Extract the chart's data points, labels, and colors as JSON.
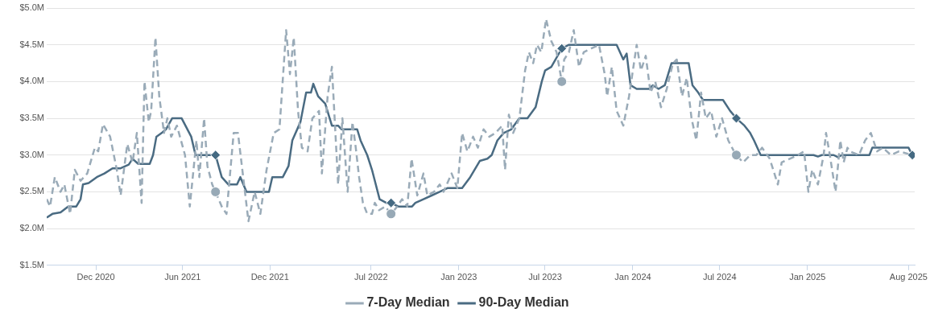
{
  "chart_data": {
    "type": "line",
    "xlim": [
      "2020-08-20",
      "2025-08-14"
    ],
    "xticks": [
      {
        "value": "2020-12-01",
        "label": "Dec 2020"
      },
      {
        "value": "2021-06-01",
        "label": "Jun 2021"
      },
      {
        "value": "2021-12-01",
        "label": "Dec 2021"
      },
      {
        "value": "2022-07-01",
        "label": "Jul 2022"
      },
      {
        "value": "2023-01-01",
        "label": "Jan 2023"
      },
      {
        "value": "2023-07-01",
        "label": "Jul 2023"
      },
      {
        "value": "2024-01-01",
        "label": "Jan 2024"
      },
      {
        "value": "2024-07-01",
        "label": "Jul 2024"
      },
      {
        "value": "2025-01-01",
        "label": "Jan 2025"
      },
      {
        "value": "2025-08-01",
        "label": "Aug 2025"
      }
    ],
    "ylim": [
      1.5,
      5.0
    ],
    "yticks": [
      {
        "value": 1.5,
        "label": "$1.5M"
      },
      {
        "value": 2.0,
        "label": "$2.0M"
      },
      {
        "value": 2.5,
        "label": "$2.5M"
      },
      {
        "value": 3.0,
        "label": "$3.0M"
      },
      {
        "value": 3.5,
        "label": "$3.5M"
      },
      {
        "value": 4.0,
        "label": "$4.0M"
      },
      {
        "value": 4.5,
        "label": "$4.5M"
      },
      {
        "value": 5.0,
        "label": "$5.0M"
      }
    ],
    "grid": "y",
    "legend": "bottom",
    "marker": "none",
    "series": [
      {
        "name": "7-Day Median",
        "color": "#9aabb8",
        "line_style": "dashed",
        "x": [
          "2020-08-20",
          "2020-08-27",
          "2020-09-06",
          "2020-09-18",
          "2020-09-26",
          "2020-10-08",
          "2020-10-18",
          "2020-10-30",
          "2020-11-13",
          "2020-11-29",
          "2020-12-06",
          "2020-12-16",
          "2020-12-31",
          "2021-01-14",
          "2021-01-22",
          "2021-02-05",
          "2021-02-16",
          "2021-02-25",
          "2021-03-07",
          "2021-03-13",
          "2021-03-22",
          "2021-03-27",
          "2021-04-05",
          "2021-04-13",
          "2021-04-23",
          "2021-04-30",
          "2021-05-08",
          "2021-05-20",
          "2021-06-06",
          "2021-06-16",
          "2021-06-30",
          "2021-07-06",
          "2021-07-16",
          "2021-07-23",
          "2021-08-02",
          "2021-08-09",
          "2021-08-22",
          "2021-09-01",
          "2021-09-16",
          "2021-09-25",
          "2021-10-17",
          "2021-10-30",
          "2021-11-11",
          "2021-11-24",
          "2021-12-09",
          "2021-12-21",
          "2022-01-04",
          "2022-01-12",
          "2022-01-20",
          "2022-01-29",
          "2022-02-06",
          "2022-02-18",
          "2022-02-28",
          "2022-03-14",
          "2022-03-20",
          "2022-04-01",
          "2022-04-10",
          "2022-04-23",
          "2022-05-02",
          "2022-05-13",
          "2022-05-23",
          "2022-05-30",
          "2022-06-06",
          "2022-06-14",
          "2022-06-23",
          "2022-07-03",
          "2022-07-09",
          "2022-07-18",
          "2022-07-31",
          "2022-08-12",
          "2022-08-25",
          "2022-09-04",
          "2022-09-15",
          "2022-09-24",
          "2022-10-06",
          "2022-10-19",
          "2022-10-27",
          "2022-11-10",
          "2022-11-22",
          "2022-11-30",
          "2022-12-17",
          "2022-12-29",
          "2023-01-08",
          "2023-01-19",
          "2023-01-31",
          "2023-02-10",
          "2023-02-22",
          "2023-03-06",
          "2023-03-19",
          "2023-04-02",
          "2023-04-08",
          "2023-04-16",
          "2023-04-25",
          "2023-05-08",
          "2023-05-20",
          "2023-05-28",
          "2023-06-06",
          "2023-06-14",
          "2023-06-23",
          "2023-07-03",
          "2023-07-14",
          "2023-07-25",
          "2023-08-05",
          "2023-08-10",
          "2023-08-20",
          "2023-08-30",
          "2023-09-10",
          "2023-09-20",
          "2023-10-22",
          "2023-11-03",
          "2023-11-08",
          "2023-11-18",
          "2023-11-28",
          "2023-12-12",
          "2023-12-24",
          "2024-01-09",
          "2024-01-18",
          "2024-01-28",
          "2024-02-07",
          "2024-02-17",
          "2024-02-29",
          "2024-03-12",
          "2024-03-25",
          "2024-04-02",
          "2024-04-13",
          "2024-04-23",
          "2024-05-03",
          "2024-05-13",
          "2024-05-23",
          "2024-06-02",
          "2024-06-13",
          "2024-06-24",
          "2024-07-06",
          "2024-07-19",
          "2024-07-31",
          "2024-08-05",
          "2024-08-19",
          "2024-09-03",
          "2024-09-16",
          "2024-09-28",
          "2024-10-14",
          "2024-10-31",
          "2024-11-08",
          "2024-11-25",
          "2024-12-12",
          "2024-12-25",
          "2025-01-03",
          "2025-01-11",
          "2025-01-23",
          "2025-02-04",
          "2025-02-09",
          "2025-02-17",
          "2025-03-01",
          "2025-03-11",
          "2025-03-18",
          "2025-03-26",
          "2025-03-31",
          "2025-04-19",
          "2025-05-02",
          "2025-05-14",
          "2025-05-27",
          "2025-06-08",
          "2025-06-25",
          "2025-07-12",
          "2025-08-09"
        ],
        "values": [
          2.4,
          2.3,
          2.7,
          2.5,
          2.6,
          2.2,
          2.8,
          2.65,
          2.75,
          3.1,
          3.05,
          3.42,
          3.25,
          2.8,
          2.45,
          3.15,
          2.9,
          3.3,
          2.35,
          4.0,
          3.45,
          3.6,
          4.6,
          3.8,
          3.3,
          3.5,
          3.25,
          3.4,
          3.0,
          2.3,
          3.2,
          2.7,
          3.5,
          2.85,
          2.6,
          2.5,
          2.3,
          2.2,
          3.3,
          3.3,
          2.1,
          2.5,
          2.2,
          2.8,
          3.3,
          3.35,
          4.7,
          4.1,
          4.6,
          3.6,
          3.1,
          3.05,
          3.5,
          3.6,
          2.75,
          3.8,
          4.2,
          2.6,
          3.5,
          2.5,
          3.45,
          3.1,
          2.7,
          2.35,
          2.2,
          2.2,
          2.35,
          2.25,
          2.3,
          2.2,
          2.3,
          2.4,
          2.3,
          2.95,
          2.45,
          2.75,
          2.45,
          2.5,
          2.6,
          2.5,
          2.75,
          2.55,
          3.3,
          3.05,
          3.25,
          3.1,
          3.35,
          3.25,
          3.3,
          3.4,
          2.8,
          3.55,
          3.3,
          3.5,
          4.15,
          4.4,
          4.25,
          4.5,
          4.4,
          4.85,
          4.55,
          4.4,
          4.0,
          4.3,
          4.4,
          4.7,
          4.2,
          4.4,
          4.5,
          4.1,
          3.8,
          4.2,
          3.6,
          3.4,
          3.8,
          4.5,
          4.15,
          4.35,
          3.85,
          4.0,
          3.65,
          3.9,
          4.25,
          4.3,
          3.8,
          4.05,
          3.5,
          3.2,
          3.85,
          3.5,
          3.6,
          3.25,
          3.5,
          3.2,
          3.05,
          3.0,
          2.9,
          3.0,
          3.0,
          3.1,
          2.95,
          2.6,
          2.9,
          2.95,
          3.0,
          3.05,
          2.5,
          2.8,
          2.6,
          3.0,
          3.3,
          3.0,
          2.5,
          3.2,
          2.9,
          3.1,
          3.05,
          3.0,
          3.2,
          3.3,
          3.05,
          3.1,
          3.0,
          3.05,
          3.0
        ]
      },
      {
        "name": "90-Day Median",
        "color": "#4a6b82",
        "line_style": "solid",
        "x": [
          "2020-08-20",
          "2020-09-01",
          "2020-09-18",
          "2020-10-04",
          "2020-10-21",
          "2020-10-30",
          "2020-11-04",
          "2020-11-16",
          "2020-12-03",
          "2020-12-19",
          "2021-01-05",
          "2021-01-22",
          "2021-02-08",
          "2021-02-16",
          "2021-02-28",
          "2021-03-24",
          "2021-03-31",
          "2021-04-07",
          "2021-04-18",
          "2021-04-27",
          "2021-05-10",
          "2021-05-30",
          "2021-06-19",
          "2021-06-28",
          "2021-07-26",
          "2021-08-09",
          "2021-08-22",
          "2021-09-05",
          "2021-09-23",
          "2021-09-30",
          "2021-10-13",
          "2021-11-29",
          "2021-12-06",
          "2021-12-28",
          "2022-01-09",
          "2022-01-17",
          "2022-02-03",
          "2022-02-15",
          "2022-02-25",
          "2022-03-02",
          "2022-03-12",
          "2022-03-27",
          "2022-04-10",
          "2022-04-23",
          "2022-04-30",
          "2022-06-02",
          "2022-06-09",
          "2022-06-23",
          "2022-07-03",
          "2022-07-19",
          "2022-08-02",
          "2022-08-12",
          "2022-08-27",
          "2022-09-25",
          "2022-10-02",
          "2022-10-19",
          "2022-11-05",
          "2022-11-22",
          "2022-12-08",
          "2023-01-08",
          "2023-01-25",
          "2023-02-14",
          "2023-03-02",
          "2023-03-11",
          "2023-03-23",
          "2023-04-05",
          "2023-04-21",
          "2023-05-08",
          "2023-05-25",
          "2023-06-11",
          "2023-06-24",
          "2023-07-01",
          "2023-07-14",
          "2023-08-05",
          "2023-08-20",
          "2023-11-28",
          "2023-12-12",
          "2023-12-19",
          "2023-12-27",
          "2024-01-09",
          "2024-02-04",
          "2024-02-12",
          "2024-02-24",
          "2024-03-08",
          "2024-03-22",
          "2024-04-27",
          "2024-05-05",
          "2024-05-17",
          "2024-05-27",
          "2024-07-08",
          "2024-07-23",
          "2024-08-05",
          "2024-08-22",
          "2024-09-03",
          "2024-09-11",
          "2024-09-25",
          "2025-01-14",
          "2025-01-23",
          "2025-01-31",
          "2025-02-25",
          "2025-03-06",
          "2025-03-14",
          "2025-05-11",
          "2025-05-17",
          "2025-08-01",
          "2025-08-09"
        ],
        "values": [
          2.15,
          2.2,
          2.22,
          2.3,
          2.3,
          2.4,
          2.6,
          2.62,
          2.7,
          2.75,
          2.82,
          2.82,
          2.87,
          2.95,
          2.88,
          2.88,
          3.0,
          3.25,
          3.3,
          3.35,
          3.5,
          3.5,
          3.25,
          3.0,
          3.0,
          3.0,
          2.7,
          2.6,
          2.6,
          2.7,
          2.5,
          2.5,
          2.7,
          2.7,
          2.85,
          3.2,
          3.45,
          3.85,
          3.85,
          3.97,
          3.8,
          3.7,
          3.4,
          3.4,
          3.35,
          3.35,
          3.2,
          3.0,
          2.8,
          2.4,
          2.35,
          2.35,
          2.3,
          2.3,
          2.35,
          2.4,
          2.45,
          2.5,
          2.55,
          2.55,
          2.7,
          2.92,
          2.95,
          3.0,
          3.2,
          3.3,
          3.35,
          3.5,
          3.5,
          3.65,
          4.0,
          4.15,
          4.2,
          4.45,
          4.5,
          4.5,
          4.3,
          4.38,
          3.95,
          3.9,
          3.9,
          3.95,
          3.9,
          3.95,
          4.25,
          4.25,
          3.95,
          3.85,
          3.75,
          3.75,
          3.6,
          3.5,
          3.4,
          3.3,
          3.2,
          3.0,
          3.0,
          2.98,
          3.0,
          3.0,
          2.97,
          3.0,
          3.0,
          3.1,
          3.1,
          3.0
        ]
      },
      {
        "type": "scatter",
        "marker": "circle",
        "color": "#97a9b6",
        "x": [
          "2021-08-09",
          "2022-08-12",
          "2023-08-05",
          "2024-08-05"
        ],
        "values": [
          2.5,
          2.2,
          4.0,
          3.0
        ]
      },
      {
        "type": "scatter",
        "marker": "diamond",
        "color": "#456a82",
        "x": [
          "2021-08-09",
          "2022-08-12",
          "2023-08-05",
          "2024-08-05",
          "2025-08-09"
        ],
        "values": [
          3.0,
          2.35,
          4.45,
          3.5,
          3.0
        ]
      }
    ]
  }
}
